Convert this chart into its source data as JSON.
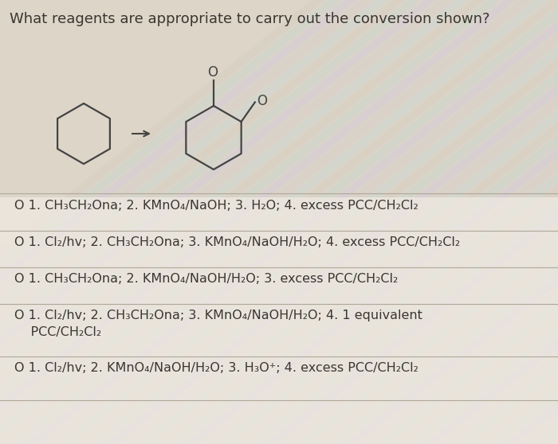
{
  "title": "What reagents are appropriate to carry out the conversion shown?",
  "bg_color": "#e8e0d8",
  "options": [
    "O 1. CH₃CH₂Ona; 2. KMnO₄/NaOH; 3. H₂O; 4. excess PCC/CH₂Cl₂",
    "O 1. Cl₂/hv; 2. CH₃CH₂Ona; 3. KMnO₄/NaOH/H₂O; 4. excess PCC/CH₂Cl₂",
    "O 1. CH₃CH₂Ona; 2. KMnO₄/NaOH/H₂O; 3. excess PCC/CH₂Cl₂",
    "O 1. Cl₂/hv; 2. CH₃CH₂Ona; 3. KMnO₄/NaOH/H₂O; 4. 1 equivalent\n    PCC/CH₂Cl₂",
    "O 1. Cl₂/hv; 2. KMnO₄/NaOH/H₂O; 3. H₃O⁺; 4. excess PCC/CH₂Cl₂"
  ],
  "divider_color": "#b0a898",
  "text_color": "#3a3530",
  "title_fontsize": 13,
  "option_fontsize": 11.5,
  "line_color": "#555555"
}
